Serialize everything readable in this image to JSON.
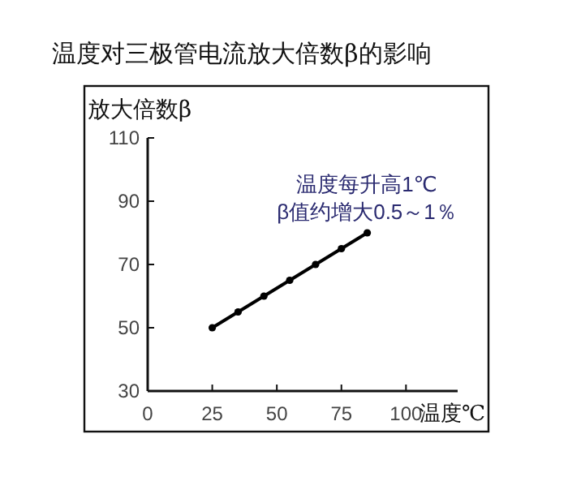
{
  "chart_data": {
    "type": "line",
    "title": "温度对三极管电流放大倍数β的影响",
    "xlabel": "温度℃",
    "ylabel": "放大倍数β",
    "x": [
      25,
      35,
      45,
      55,
      65,
      75,
      85
    ],
    "series": [
      {
        "color": "#000000",
        "values": [
          50,
          55,
          60,
          65,
          70,
          75,
          80
        ]
      }
    ],
    "xlim": [
      0,
      120
    ],
    "xticks": [
      0,
      25,
      50,
      75,
      100
    ],
    "ylim": [
      30,
      110
    ],
    "yticks": [
      30,
      50,
      70,
      90,
      110
    ],
    "annotations": [
      "温度每升高1℃",
      "β值约增大0.5～1％"
    ],
    "grid": false,
    "marker": "circle",
    "line_style": "solid"
  }
}
